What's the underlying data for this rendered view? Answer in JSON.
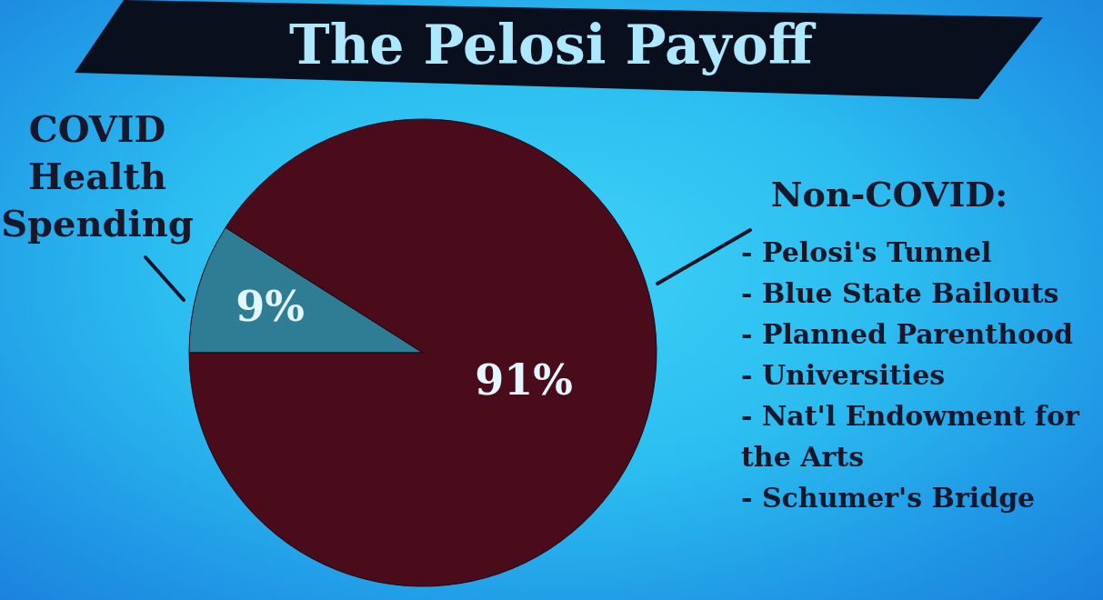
{
  "chart_data": {
    "type": "pie",
    "title": "The Pelosi Payoff",
    "categories": [
      "COVID Health Spending",
      null
    ],
    "values": [
      9,
      91
    ],
    "colors": [
      "#2f7d95",
      "#4a0c1a"
    ],
    "value_labels": [
      "9%",
      "91%"
    ],
    "annotations": [
      "Non-COVID:",
      "- Pelosi's Tunnel",
      "- Blue State Bailouts",
      "- Planned Parenthood",
      "- Universities",
      "- Nat'l Endowment for the Arts",
      "- Schumer's Bridge"
    ]
  }
}
